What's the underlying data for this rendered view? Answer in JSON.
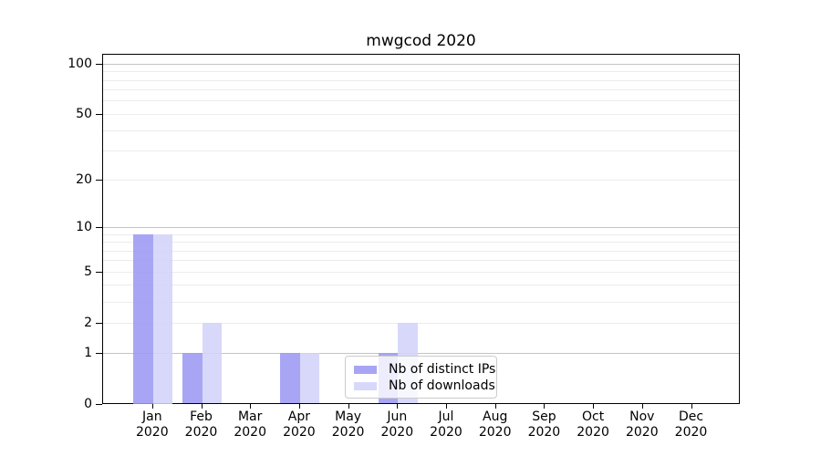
{
  "chart_data": {
    "type": "bar",
    "title": "mwgcod 2020",
    "months": [
      "Jan",
      "Feb",
      "Mar",
      "Apr",
      "May",
      "Jun",
      "Jul",
      "Aug",
      "Sep",
      "Oct",
      "Nov",
      "Dec"
    ],
    "year": "2020",
    "categories": [
      "Jan 2020",
      "Feb 2020",
      "Mar 2020",
      "Apr 2020",
      "May 2020",
      "Jun 2020",
      "Jul 2020",
      "Aug 2020",
      "Sep 2020",
      "Oct 2020",
      "Nov 2020",
      "Dec 2020"
    ],
    "series": [
      {
        "name": "Nb of distinct IPs",
        "color": "rgba(155,153,242,0.87)",
        "values": [
          9,
          1,
          0,
          1,
          0,
          1,
          0,
          0,
          0,
          0,
          0,
          0
        ]
      },
      {
        "name": "Nb of downloads",
        "color": "rgba(211,211,250,0.88)",
        "values": [
          9,
          2,
          0,
          1,
          0,
          2,
          0,
          0,
          0,
          0,
          0,
          0
        ]
      }
    ],
    "xlabel": "",
    "ylabel": "",
    "y_axis": {
      "scale": "log10(value+1)",
      "tick_values": [
        0,
        1,
        2,
        5,
        10,
        20,
        50,
        100
      ],
      "major_gridlines": [
        1,
        10,
        100
      ],
      "minor_gridlines": [
        2,
        3,
        4,
        5,
        6,
        7,
        8,
        9,
        20,
        30,
        40,
        50,
        60,
        70,
        80,
        90
      ],
      "range": [
        0,
        115
      ]
    },
    "legend": {
      "position": "lower-center-right",
      "entries": [
        "Nb of distinct IPs",
        "Nb of downloads"
      ]
    },
    "grid": true,
    "colors": {
      "background": "#ffffff",
      "frame": "#000000",
      "major_grid": "#c4c4c4",
      "minor_grid": "#ececec"
    }
  }
}
